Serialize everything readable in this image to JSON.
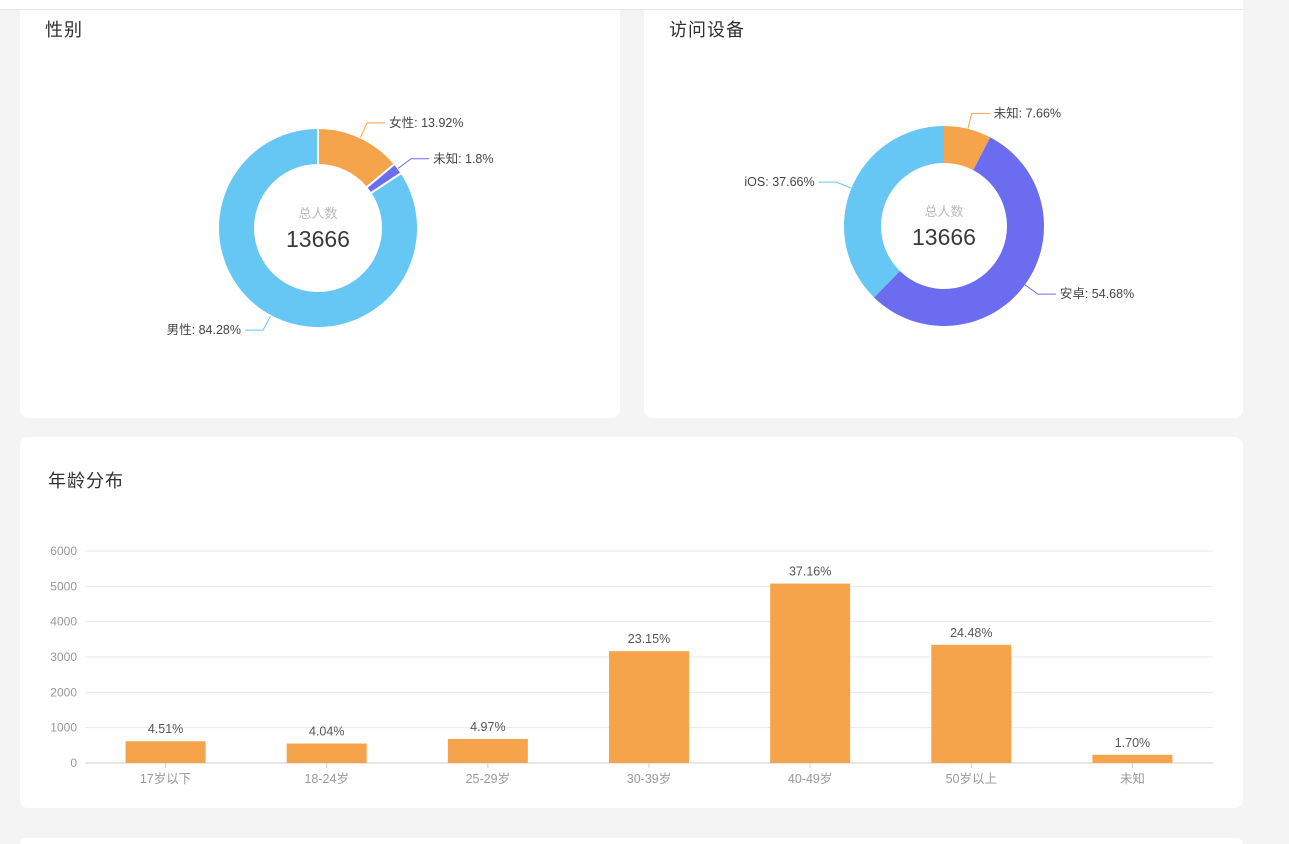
{
  "page": {
    "background": "#f4f4f5",
    "card_background": "#ffffff",
    "divider_color": "#e7e7e7"
  },
  "palette": {
    "orange": "#f6a44c",
    "sky_blue": "#66c7f4",
    "indigo": "#6c6cf0",
    "axis_label": "#999999",
    "value_label": "#565656",
    "grid_line": "#e9e9e9",
    "axis_line": "#cfcfcf",
    "leader_text": "#454545"
  },
  "chart_data": [
    {
      "type": "pie",
      "subtype": "donut",
      "title": "性别",
      "center_label": "总人数",
      "center_value": "13666",
      "total": 13666,
      "legend_position": "none",
      "slices": [
        {
          "name": "女性",
          "value_pct": 13.92,
          "label": "女性: 13.92%",
          "color": "#f6a44c"
        },
        {
          "name": "未知",
          "value_pct": 1.8,
          "label": "未知: 1.8%",
          "color": "#6c6cf0"
        },
        {
          "name": "男性",
          "value_pct": 84.28,
          "label": "男性: 84.28%",
          "color": "#66c7f4"
        }
      ]
    },
    {
      "type": "pie",
      "subtype": "donut",
      "title": "访问设备",
      "center_label": "总人数",
      "center_value": "13666",
      "total": 13666,
      "legend_position": "none",
      "slices": [
        {
          "name": "未知",
          "value_pct": 7.66,
          "label": "未知: 7.66%",
          "color": "#f6a44c"
        },
        {
          "name": "安卓",
          "value_pct": 54.68,
          "label": "安卓: 54.68%",
          "color": "#6c6cf0"
        },
        {
          "name": "iOS",
          "value_pct": 37.66,
          "label": "iOS: 37.66%",
          "color": "#66c7f4"
        }
      ]
    },
    {
      "type": "bar",
      "title": "年龄分布",
      "categories": [
        "17岁以下",
        "18-24岁",
        "25-29岁",
        "30-39岁",
        "40-49岁",
        "50岁以上",
        "未知"
      ],
      "values": [
        616,
        552,
        679,
        3164,
        5078,
        3345,
        232
      ],
      "labels": [
        "4.51%",
        "4.04%",
        "4.97%",
        "23.15%",
        "37.16%",
        "24.48%",
        "1.70%"
      ],
      "bar_color": "#f6a44c",
      "xlabel": "",
      "ylabel": "",
      "ylim": [
        0,
        6000
      ],
      "yticks": [
        0,
        1000,
        2000,
        3000,
        4000,
        5000,
        6000
      ],
      "grid": true
    }
  ]
}
